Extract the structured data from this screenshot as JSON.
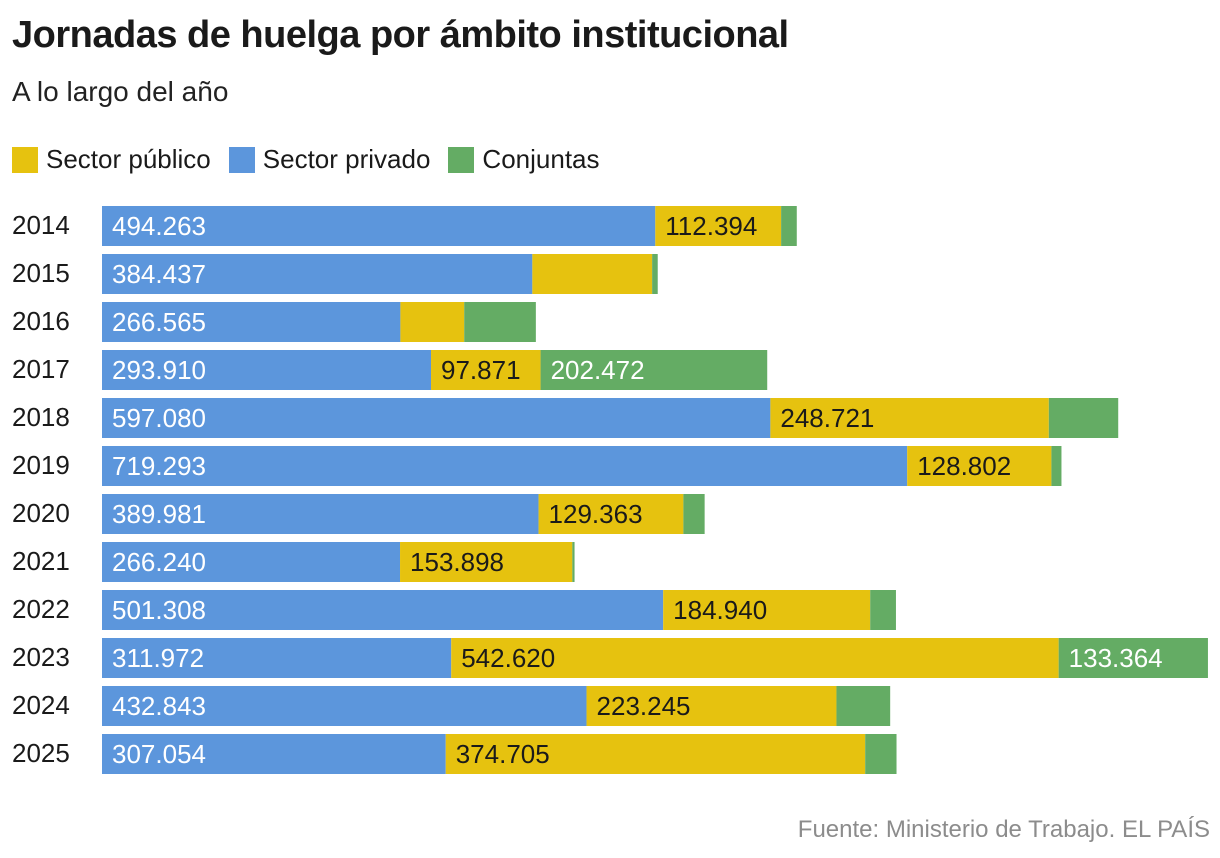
{
  "title": "Jornadas de huelga por ámbito institucional",
  "subtitle": "A lo largo del año",
  "source": "Fuente: Ministerio de Trabajo. EL PAÍS",
  "legend": [
    {
      "label": "Sector público",
      "color": "#e6c20f"
    },
    {
      "label": "Sector privado",
      "color": "#5c96dc"
    },
    {
      "label": "Conjuntas",
      "color": "#64ac64"
    }
  ],
  "chart_data": {
    "type": "bar",
    "orientation": "horizontal",
    "stacked": true,
    "categories": [
      "2014",
      "2015",
      "2016",
      "2017",
      "2018",
      "2019",
      "2020",
      "2021",
      "2022",
      "2023",
      "2024",
      "2025"
    ],
    "series": [
      {
        "name": "Sector privado",
        "color": "#5c96dc",
        "values": [
          494263,
          384437,
          266565,
          293910,
          597080,
          719293,
          389981,
          266240,
          501308,
          311972,
          432843,
          307054
        ],
        "labels": [
          "494.263",
          "384.437",
          "266.565",
          "293.910",
          "597.080",
          "719.293",
          "389.981",
          "266.240",
          "501.308",
          "311.972",
          "432.843",
          "307.054"
        ]
      },
      {
        "name": "Sector público",
        "color": "#e6c20f",
        "values": [
          112394,
          107000,
          57000,
          97871,
          248721,
          128802,
          129363,
          153898,
          184940,
          542620,
          223245,
          374705
        ],
        "labels": [
          "112.394",
          "",
          "",
          "97.871",
          "248.721",
          "128.802",
          "129.363",
          "153.898",
          "184.940",
          "542.620",
          "223.245",
          "374.705"
        ]
      },
      {
        "name": "Conjuntas",
        "color": "#64ac64",
        "values": [
          14000,
          5000,
          64000,
          202472,
          62000,
          9000,
          19000,
          2000,
          23000,
          133364,
          48000,
          28000
        ],
        "labels": [
          "",
          "",
          "",
          "202.472",
          "",
          "",
          "",
          "",
          "",
          "133.364",
          "",
          ""
        ]
      }
    ],
    "xlim": [
      0,
      988000
    ],
    "grid": false,
    "legend_position": "top-left"
  }
}
